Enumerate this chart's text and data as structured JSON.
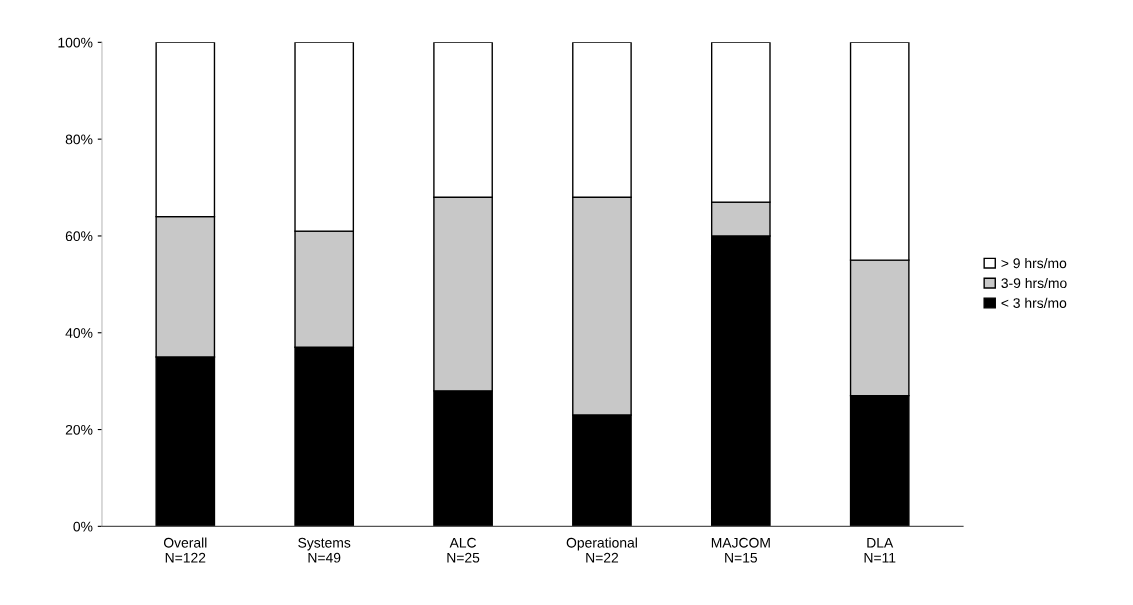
{
  "chart_data": {
    "type": "bar",
    "stacked": true,
    "categories": [
      "Overall\nN=122",
      "Systems\nN=49",
      "ALC\nN=25",
      "Operational\nN=22",
      "MAJCOM\nN=15",
      "DLA\nN=11"
    ],
    "series": [
      {
        "name": "< 3 hrs/mo",
        "color": "#000000",
        "values": [
          35,
          37,
          28,
          23,
          60,
          27
        ]
      },
      {
        "name": "3-9 hrs/mo",
        "color": "#c8c8c8",
        "values": [
          29,
          24,
          40,
          45,
          7,
          28
        ]
      },
      {
        "name": "> 9 hrs/mo",
        "color": "#ffffff",
        "values": [
          36,
          39,
          32,
          32,
          33,
          45
        ]
      }
    ],
    "ylim": [
      0,
      100
    ],
    "yticks": [
      {
        "value": 0,
        "label": "0%"
      },
      {
        "value": 20,
        "label": "20%"
      },
      {
        "value": 40,
        "label": "40%"
      },
      {
        "value": 60,
        "label": "60%"
      },
      {
        "value": 80,
        "label": "80%"
      },
      {
        "value": 100,
        "label": "100%"
      }
    ],
    "grid": false,
    "legend": "right"
  }
}
